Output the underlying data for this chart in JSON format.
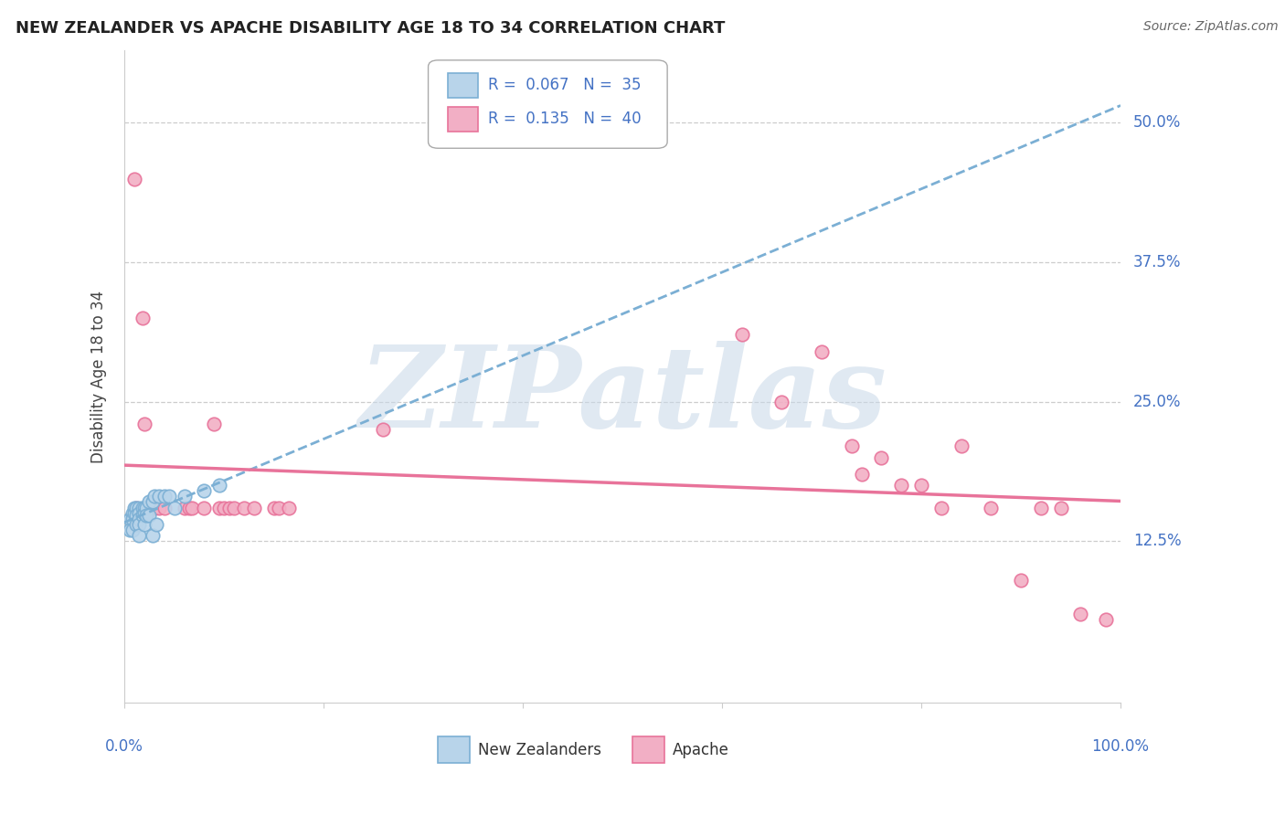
{
  "title": "NEW ZEALANDER VS APACHE DISABILITY AGE 18 TO 34 CORRELATION CHART",
  "source": "Source: ZipAtlas.com",
  "ylabel": "Disability Age 18 to 34",
  "ytick_labels": [
    "12.5%",
    "25.0%",
    "37.5%",
    "50.0%"
  ],
  "ytick_values": [
    0.125,
    0.25,
    0.375,
    0.5
  ],
  "xlim": [
    0.0,
    1.0
  ],
  "ylim": [
    -0.02,
    0.565
  ],
  "nz_color": "#7bafd4",
  "nz_fill": "#b8d4ea",
  "apache_color": "#e8739a",
  "apache_fill": "#f2afc5",
  "trend_nz_color": "#7bafd4",
  "trend_apache_color": "#e8739a",
  "watermark_text": "ZIPatlas",
  "nz_x": [
    0.005,
    0.005,
    0.008,
    0.008,
    0.008,
    0.01,
    0.01,
    0.012,
    0.012,
    0.012,
    0.015,
    0.015,
    0.015,
    0.015,
    0.015,
    0.018,
    0.018,
    0.02,
    0.02,
    0.02,
    0.022,
    0.022,
    0.025,
    0.025,
    0.028,
    0.028,
    0.03,
    0.032,
    0.035,
    0.04,
    0.045,
    0.05,
    0.06,
    0.08,
    0.095
  ],
  "nz_y": [
    0.145,
    0.135,
    0.15,
    0.145,
    0.135,
    0.155,
    0.15,
    0.155,
    0.148,
    0.14,
    0.155,
    0.15,
    0.145,
    0.14,
    0.13,
    0.155,
    0.148,
    0.155,
    0.15,
    0.14,
    0.155,
    0.148,
    0.16,
    0.148,
    0.16,
    0.13,
    0.165,
    0.14,
    0.165,
    0.165,
    0.165,
    0.155,
    0.165,
    0.17,
    0.175
  ],
  "apache_x": [
    0.01,
    0.012,
    0.018,
    0.02,
    0.022,
    0.025,
    0.03,
    0.035,
    0.04,
    0.06,
    0.065,
    0.068,
    0.08,
    0.09,
    0.095,
    0.1,
    0.105,
    0.11,
    0.12,
    0.13,
    0.15,
    0.155,
    0.165,
    0.26,
    0.62,
    0.66,
    0.7,
    0.73,
    0.74,
    0.76,
    0.78,
    0.8,
    0.82,
    0.84,
    0.87,
    0.9,
    0.92,
    0.94,
    0.96,
    0.985
  ],
  "apache_y": [
    0.45,
    0.155,
    0.325,
    0.23,
    0.155,
    0.155,
    0.155,
    0.155,
    0.155,
    0.155,
    0.155,
    0.155,
    0.155,
    0.23,
    0.155,
    0.155,
    0.155,
    0.155,
    0.155,
    0.155,
    0.155,
    0.155,
    0.155,
    0.225,
    0.31,
    0.25,
    0.295,
    0.21,
    0.185,
    0.2,
    0.175,
    0.175,
    0.155,
    0.21,
    0.155,
    0.09,
    0.155,
    0.155,
    0.06,
    0.055
  ]
}
